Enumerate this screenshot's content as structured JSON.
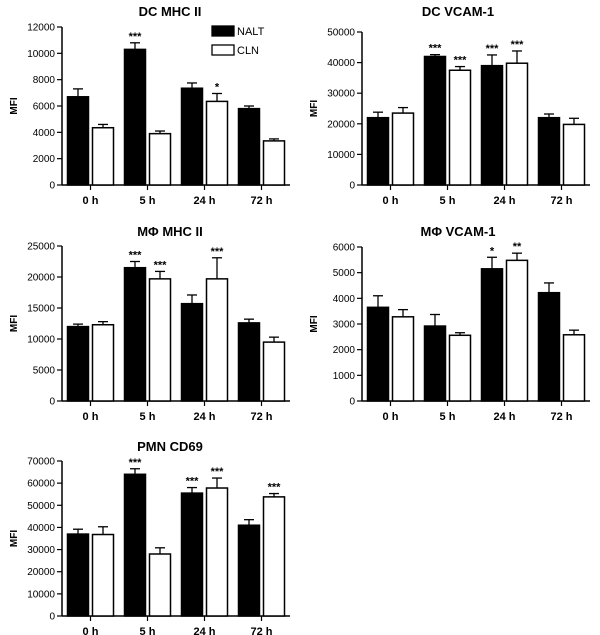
{
  "legend": [
    {
      "label": "NALT",
      "color": "#000000"
    },
    {
      "label": "CLN",
      "color": "#ffffff"
    }
  ],
  "chart_data": [
    {
      "type": "bar",
      "title": "DC MHC II",
      "ylabel": "MFI",
      "categories": [
        "0 h",
        "5 h",
        "24 h",
        "72 h"
      ],
      "ylim": [
        0,
        12000
      ],
      "yticks": [
        0,
        2000,
        4000,
        6000,
        8000,
        10000,
        12000
      ],
      "series": [
        {
          "name": "NALT",
          "values": [
            6700,
            10300,
            7350,
            5800
          ],
          "errors": [
            600,
            500,
            400,
            200
          ],
          "stars": [
            "",
            "***",
            "",
            ""
          ]
        },
        {
          "name": "CLN",
          "values": [
            4350,
            3900,
            6350,
            3350
          ],
          "errors": [
            250,
            200,
            600,
            150
          ],
          "stars": [
            "",
            "",
            "*",
            ""
          ]
        }
      ]
    },
    {
      "type": "bar",
      "title": "DC VCAM-1",
      "ylabel": "MFI",
      "categories": [
        "0 h",
        "5 h",
        "24 h",
        "72 h"
      ],
      "ylim": [
        0,
        50000
      ],
      "yticks": [
        0,
        10000,
        20000,
        30000,
        40000,
        50000
      ],
      "series": [
        {
          "name": "NALT",
          "values": [
            22000,
            42000,
            39000,
            22000
          ],
          "errors": [
            1800,
            600,
            3500,
            1200
          ],
          "stars": [
            "",
            "***",
            "***",
            ""
          ]
        },
        {
          "name": "CLN",
          "values": [
            23500,
            37500,
            39800,
            19800
          ],
          "errors": [
            1800,
            1200,
            4000,
            2000
          ],
          "stars": [
            "",
            "***",
            "***",
            ""
          ]
        }
      ]
    },
    {
      "type": "bar",
      "title": "MΦ MHC II",
      "ylabel": "MFI",
      "categories": [
        "0 h",
        "5 h",
        "24 h",
        "72 h"
      ],
      "ylim": [
        0,
        25000
      ],
      "yticks": [
        0,
        5000,
        10000,
        15000,
        20000,
        25000
      ],
      "series": [
        {
          "name": "NALT",
          "values": [
            12000,
            21500,
            15700,
            12600
          ],
          "errors": [
            400,
            1000,
            1400,
            600
          ],
          "stars": [
            "",
            "***",
            "",
            ""
          ]
        },
        {
          "name": "CLN",
          "values": [
            12300,
            19700,
            19700,
            9500
          ],
          "errors": [
            500,
            1200,
            3400,
            800
          ],
          "stars": [
            "",
            "***",
            "***",
            ""
          ]
        }
      ]
    },
    {
      "type": "bar",
      "title": "MΦ VCAM-1",
      "ylabel": "MFI",
      "categories": [
        "0 h",
        "5 h",
        "24 h",
        "72 h"
      ],
      "ylim": [
        0,
        6000
      ],
      "yticks": [
        0,
        1000,
        2000,
        3000,
        4000,
        5000,
        6000
      ],
      "series": [
        {
          "name": "NALT",
          "values": [
            3650,
            2920,
            5150,
            4220
          ],
          "errors": [
            450,
            450,
            450,
            380
          ],
          "stars": [
            "",
            "",
            "*",
            ""
          ]
        },
        {
          "name": "CLN",
          "values": [
            3280,
            2560,
            5480,
            2580
          ],
          "errors": [
            280,
            100,
            280,
            180
          ],
          "stars": [
            "",
            "",
            "**",
            ""
          ]
        }
      ]
    },
    {
      "type": "bar",
      "title": "PMN CD69",
      "ylabel": "MFI",
      "categories": [
        "0 h",
        "5 h",
        "24 h",
        "72 h"
      ],
      "ylim": [
        0,
        70000
      ],
      "yticks": [
        0,
        10000,
        20000,
        30000,
        40000,
        50000,
        60000,
        70000
      ],
      "series": [
        {
          "name": "NALT",
          "values": [
            37000,
            64000,
            55500,
            41000
          ],
          "errors": [
            2200,
            2500,
            2500,
            2500
          ],
          "stars": [
            "",
            "***",
            "***",
            ""
          ]
        },
        {
          "name": "CLN",
          "values": [
            36800,
            28000,
            57800,
            53800
          ],
          "errors": [
            3500,
            2800,
            4500,
            1500
          ],
          "stars": [
            "",
            "",
            "***",
            "***"
          ]
        }
      ]
    }
  ]
}
